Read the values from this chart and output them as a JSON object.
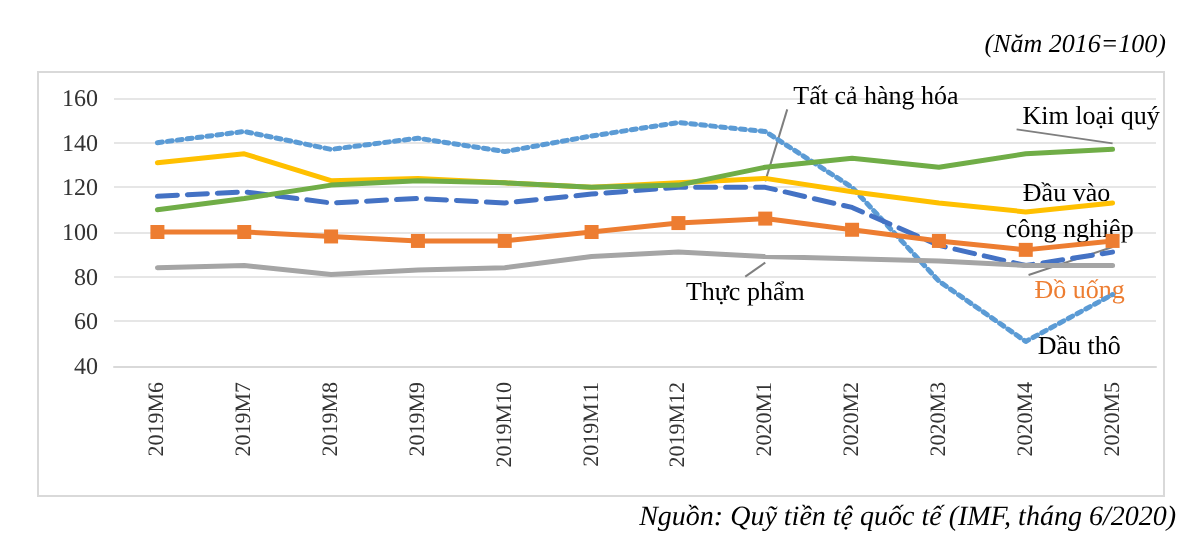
{
  "chart_data": {
    "type": "line",
    "subtitle": "(Năm 2016=100)",
    "categories": [
      "2019M6",
      "2019M7",
      "2019M8",
      "2019M9",
      "2019M10",
      "2019M11",
      "2019M12",
      "2020M1",
      "2020M2",
      "2020M3",
      "2020M4",
      "2020M5"
    ],
    "series": [
      {
        "name": "Dầu thô",
        "color": "#5b9bd5",
        "line_style": "dotted",
        "marker": "none",
        "values": [
          140,
          145,
          137,
          142,
          136,
          143,
          149,
          145,
          120,
          78,
          51,
          72
        ]
      },
      {
        "name": "Tất cả hàng hóa",
        "color": "#4472c4",
        "line_style": "dashed",
        "marker": "none",
        "values": [
          116,
          118,
          113,
          115,
          113,
          117,
          120,
          120,
          111,
          94,
          85,
          91
        ]
      },
      {
        "name": "Đầu vào công nghiệp",
        "color": "#ffc000",
        "line_style": "solid",
        "marker": "none",
        "values": [
          131,
          135,
          123,
          124,
          122,
          120,
          122,
          124,
          118,
          113,
          109,
          113
        ]
      },
      {
        "name": "Kim loại quý",
        "color": "#70ad47",
        "line_style": "solid",
        "marker": "none",
        "values": [
          110,
          115,
          121,
          123,
          122,
          120,
          121,
          129,
          133,
          129,
          135,
          137
        ]
      },
      {
        "name": "Đồ uống",
        "color": "#ed7d31",
        "line_style": "solid",
        "marker": "square",
        "values": [
          100,
          100,
          98,
          96,
          96,
          100,
          104,
          106,
          101,
          96,
          92,
          96
        ]
      },
      {
        "name": "Thực phẩm",
        "color": "#a5a5a5",
        "line_style": "solid",
        "marker": "none",
        "values": [
          84,
          85,
          81,
          83,
          84,
          89,
          91,
          89,
          88,
          87,
          85,
          85
        ]
      }
    ],
    "ylim": [
      40,
      160
    ],
    "yticks": [
      40,
      60,
      80,
      100,
      120,
      140,
      160
    ],
    "grid": "y",
    "annotations": [
      "Nguồn: Quỹ tiền tệ quốc tế (IMF, tháng 6/2020)"
    ]
  }
}
